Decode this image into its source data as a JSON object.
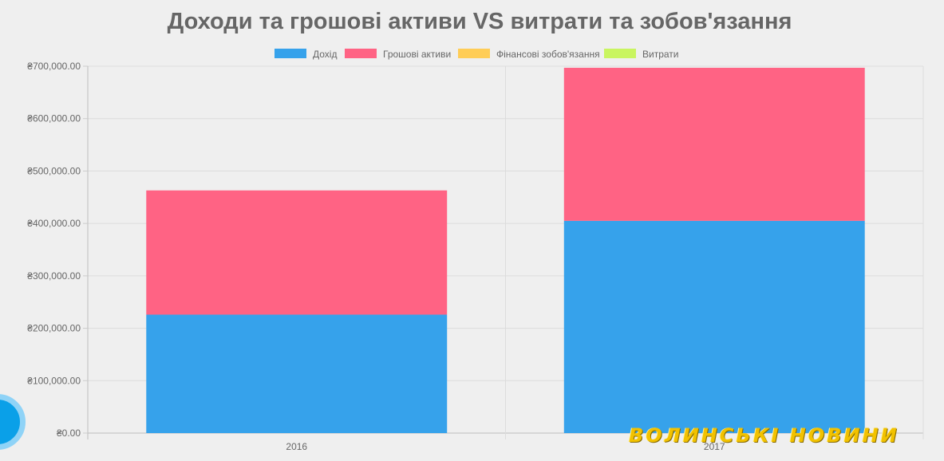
{
  "chart_data": {
    "type": "bar",
    "stacked": true,
    "title": "Доходи та грошові активи VS витрати та зобов'язання",
    "categories": [
      "2016",
      "2017"
    ],
    "series": [
      {
        "name": "Дохід",
        "values": [
          226000,
          405000
        ],
        "color": "#36a2eb"
      },
      {
        "name": "Грошові активи",
        "values": [
          237000,
          292000
        ],
        "color": "#ff6384"
      },
      {
        "name": "Фінансові зобов'язання",
        "values": [
          0,
          0
        ],
        "color": "#ffcd56"
      },
      {
        "name": "Витрати",
        "values": [
          0,
          0
        ],
        "color": "#c9f560"
      }
    ],
    "ylim": [
      0,
      700000
    ],
    "yticks": [
      0,
      100000,
      200000,
      300000,
      400000,
      500000,
      600000,
      700000
    ],
    "ytick_labels": [
      "₴0.00",
      "₴100,000.00",
      "₴200,000.00",
      "₴300,000.00",
      "₴400,000.00",
      "₴500,000.00",
      "₴600,000.00",
      "₴700,000.00"
    ],
    "grid": true,
    "legend_position": "top-center"
  },
  "watermark": {
    "text": "ВОЛИНСЬКІ НОВИНИ"
  }
}
